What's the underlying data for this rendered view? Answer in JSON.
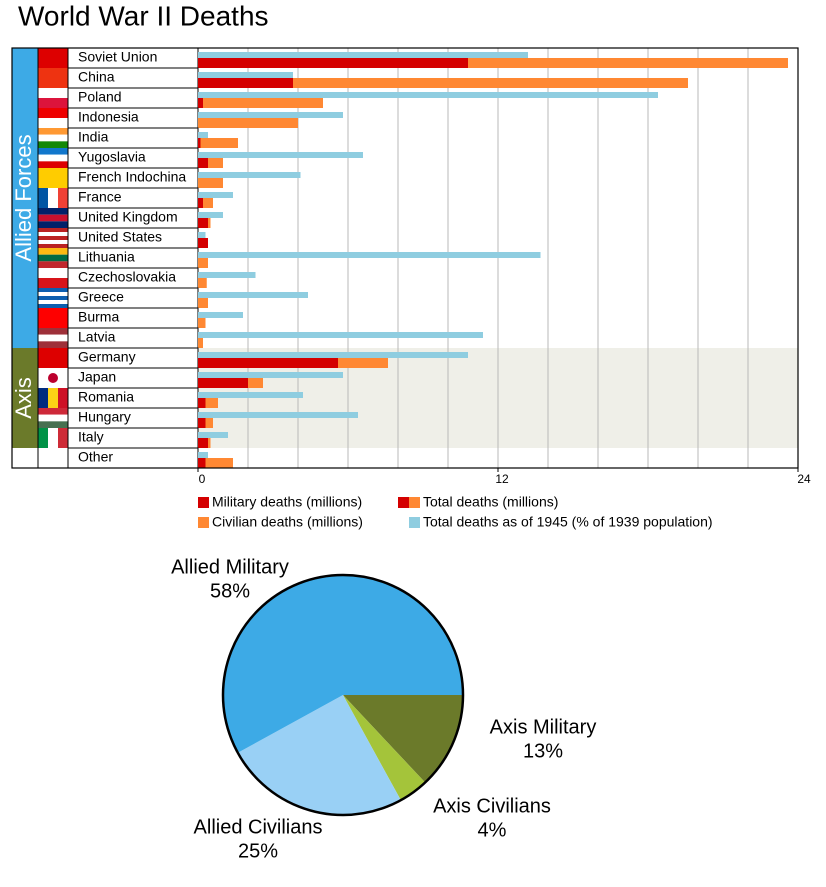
{
  "chart_data": [
    {
      "type": "bar",
      "orientation": "horizontal",
      "title": "World War II Deaths",
      "groups": [
        {
          "name": "Allied Forces",
          "color": "#3daae6",
          "categories": [
            "Soviet Union",
            "China",
            "Poland",
            "Indonesia",
            "India",
            "Yugoslavia",
            "French Indochina",
            "France",
            "United Kingdom",
            "United States",
            "Lithuania",
            "Czechoslovakia",
            "Greece",
            "Burma",
            "Latvia"
          ]
        },
        {
          "name": "Axis",
          "color": "#6b7a2a",
          "categories": [
            "Germany",
            "Japan",
            "Romania",
            "Hungary",
            "Italy"
          ]
        },
        {
          "categories": [
            "Other"
          ]
        }
      ],
      "series": [
        {
          "name": "Military deaths (millions)",
          "color": "#d40000",
          "values": [
            10.8,
            3.8,
            0.2,
            0,
            0.1,
            0.4,
            0,
            0.2,
            0.4,
            0.4,
            0,
            0,
            0,
            0,
            0,
            5.6,
            2.0,
            0.3,
            0.3,
            0.4,
            0.3
          ]
        },
        {
          "name": "Civilian deaths (millions)",
          "color": "#ff8833",
          "values": [
            12.8,
            15.8,
            4.8,
            4.0,
            1.5,
            0.6,
            1.0,
            0.4,
            0.1,
            0,
            0.4,
            0.35,
            0.4,
            0.3,
            0.2,
            2.0,
            0.6,
            0.5,
            0.3,
            0.1,
            1.1
          ]
        },
        {
          "name": "Total deaths as of 1945 (% of 1939 population)",
          "color": "#8fcde0",
          "values": [
            13.2,
            3.8,
            18.4,
            5.8,
            0.4,
            6.6,
            4.1,
            1.4,
            1.0,
            0.3,
            13.7,
            2.3,
            4.4,
            1.8,
            11.4,
            10.8,
            5.8,
            4.2,
            6.4,
            1.2,
            0.4
          ]
        }
      ],
      "stack_label": "Total deaths (millions)",
      "xlim": [
        0,
        24
      ],
      "xticks": [
        0,
        12,
        24
      ],
      "grid": [
        2,
        4,
        6,
        8,
        10,
        12,
        14,
        16,
        18,
        20,
        22
      ]
    },
    {
      "type": "pie",
      "categories": [
        "Axis Military",
        "Axis Civilians",
        "Allied Civilians",
        "Allied Military"
      ],
      "values": [
        13,
        4,
        25,
        58
      ],
      "value_labels": [
        "13%",
        "4%",
        "25%",
        "58%"
      ],
      "colors": [
        "#6b7a2a",
        "#a4c43a",
        "#99d0f5",
        "#3daae6"
      ]
    }
  ]
}
